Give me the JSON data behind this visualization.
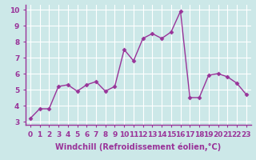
{
  "x": [
    0,
    1,
    2,
    3,
    4,
    5,
    6,
    7,
    8,
    9,
    10,
    11,
    12,
    13,
    14,
    15,
    16,
    17,
    18,
    19,
    20,
    21,
    22,
    23
  ],
  "y": [
    3.2,
    3.8,
    3.8,
    5.2,
    5.3,
    4.9,
    5.3,
    5.5,
    4.9,
    5.2,
    7.5,
    6.8,
    8.2,
    8.5,
    8.2,
    8.6,
    9.9,
    4.5,
    4.5,
    5.9,
    6.0,
    5.8,
    5.4,
    4.7
  ],
  "line_color": "#993399",
  "marker": "D",
  "marker_size": 2.5,
  "linewidth": 1.0,
  "xlabel": "Windchill (Refroidissement éolien,°C)",
  "xlabel_fontsize": 7.0,
  "ylabel_ticks": [
    3,
    4,
    5,
    6,
    7,
    8,
    9,
    10
  ],
  "xlim": [
    -0.5,
    23.5
  ],
  "ylim": [
    2.8,
    10.3
  ],
  "bg_color": "#cce8e8",
  "grid_color": "#ffffff",
  "tick_color": "#993399",
  "label_color": "#993399",
  "tick_fontsize": 6.5,
  "spine_color": "#993399"
}
